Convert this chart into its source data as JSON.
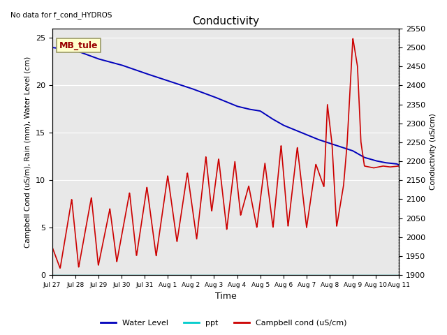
{
  "title": "Conductivity",
  "top_left_text": "No data for f_cond_HYDROS",
  "xlabel": "Time",
  "ylabel_left": "Campbell Cond (uS/m), Rain (mm), Water Level (cm)",
  "ylabel_right": "Conductivity (uS/cm)",
  "ylim_left": [
    0,
    26
  ],
  "ylim_right": [
    1900,
    2550
  ],
  "xtick_labels": [
    "Jul 27",
    "Jul 28",
    "Jul 29",
    "Jul 30",
    "Jul 31",
    "Aug 1",
    "Aug 2",
    "Aug 3",
    "Aug 4",
    "Aug 5",
    "Aug 6",
    "Aug 7",
    "Aug 8",
    "Aug 9",
    "Aug 10",
    "Aug 11"
  ],
  "background_color": "#e8e8e8",
  "legend_box_label": "MB_tule",
  "legend_box_color": "#ffffcc",
  "legend_box_border": "#999966",
  "legend_box_text_color": "#990000",
  "water_level_color": "#0000bb",
  "ppt_color": "#00cccc",
  "campbell_cond_color": "#cc0000",
  "grid_color": "#ffffff",
  "fig_bg": "#ffffff"
}
